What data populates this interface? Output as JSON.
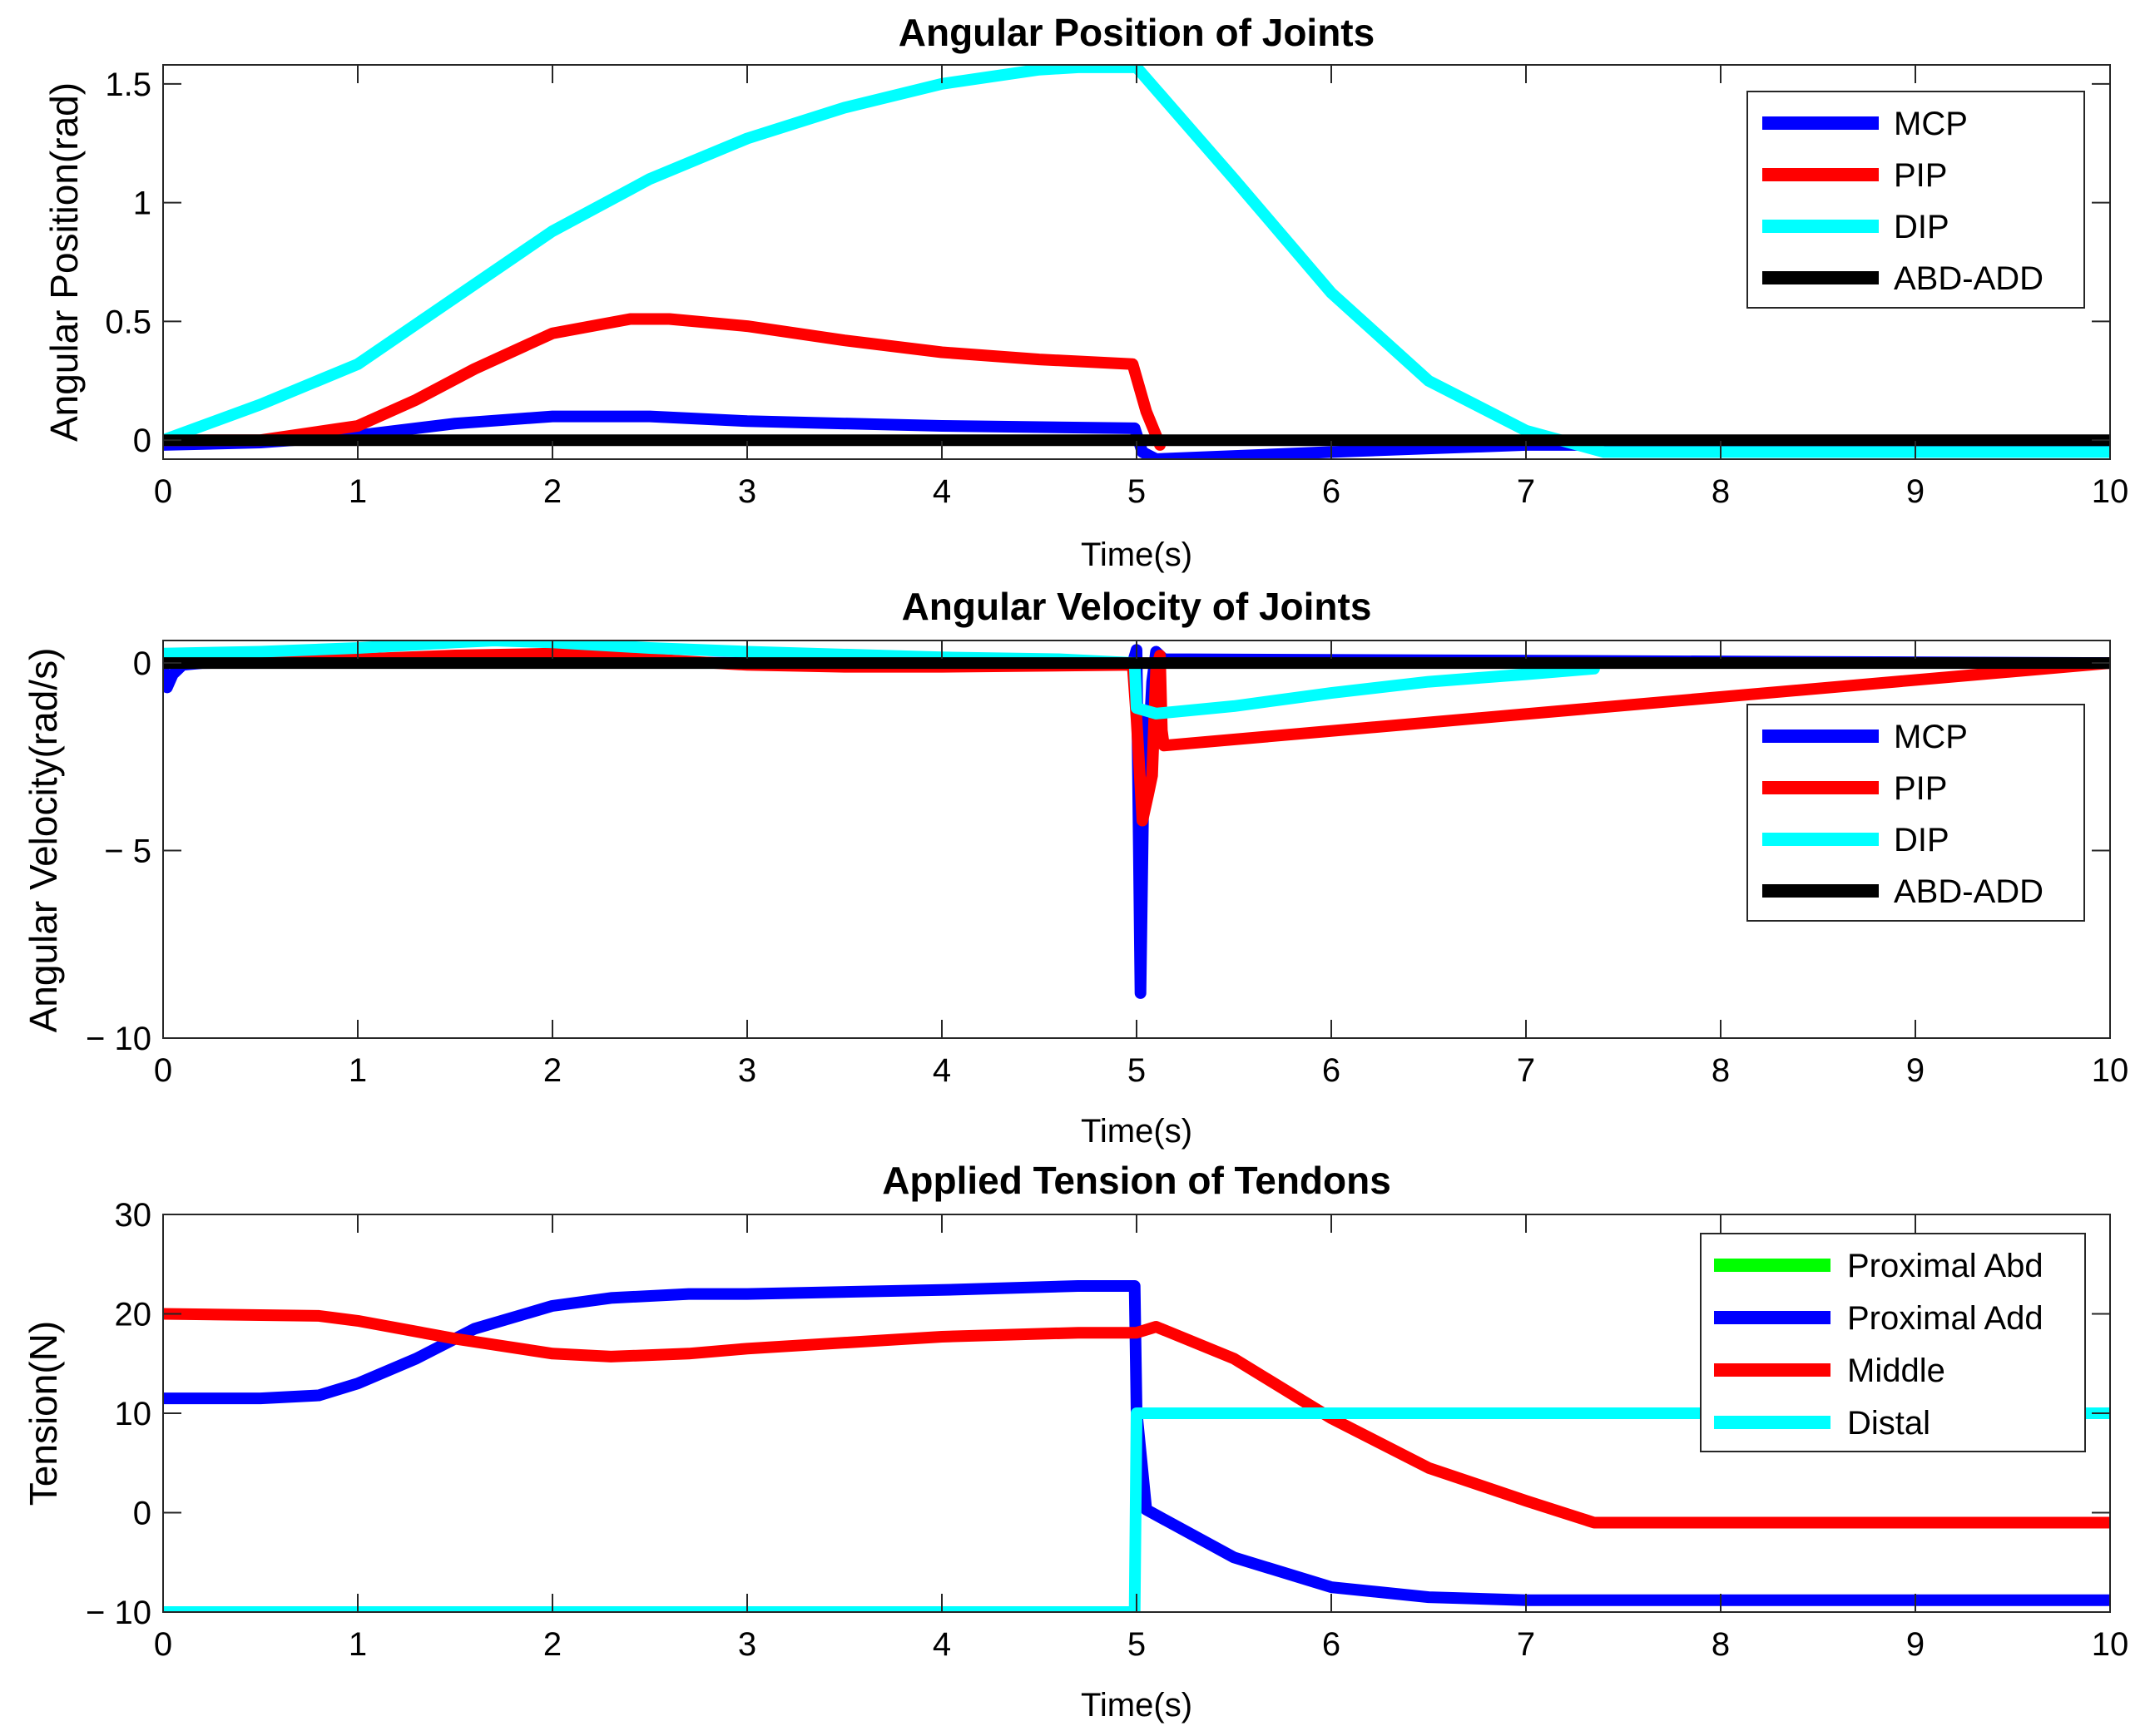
{
  "chart_data": [
    {
      "type": "line",
      "title": "Angular Position of Joints",
      "xlabel": "Time(s)",
      "ylabel": "Angular Position(rad)",
      "xlim": [
        0,
        10
      ],
      "ylim": [
        -0.08,
        1.58
      ],
      "xticks": [
        0,
        1,
        2,
        3,
        4,
        5,
        6,
        7,
        8,
        9,
        10
      ],
      "xtick_labels": [
        "0",
        "1",
        "2",
        "3",
        "4",
        "5",
        "6",
        "7",
        "8",
        "9",
        "10"
      ],
      "yticks": [
        0,
        0.5,
        1,
        1.5
      ],
      "ytick_labels": [
        "0",
        "0.5",
        "1",
        "1.5"
      ],
      "legend_position": "top-right",
      "series": [
        {
          "name": "MCP",
          "color": "#0000ff",
          "x": [
            0,
            0.5,
            1,
            1.5,
            2,
            2.5,
            3,
            4,
            4.99,
            5.03,
            5.1,
            6,
            7,
            10
          ],
          "y": [
            -0.02,
            -0.01,
            0.02,
            0.07,
            0.1,
            0.1,
            0.08,
            0.06,
            0.05,
            -0.05,
            -0.08,
            -0.05,
            -0.02,
            -0.02
          ]
        },
        {
          "name": "PIP",
          "color": "#ff0000",
          "x": [
            0,
            0.5,
            1,
            1.3,
            1.6,
            2,
            2.4,
            2.6,
            3,
            3.5,
            4,
            4.5,
            4.98,
            5.05,
            5.12
          ],
          "y": [
            0,
            0,
            0.06,
            0.17,
            0.3,
            0.45,
            0.51,
            0.51,
            0.48,
            0.42,
            0.37,
            0.34,
            0.32,
            0.12,
            -0.02
          ]
        },
        {
          "name": "DIP",
          "color": "#00ffff",
          "x": [
            0,
            0.5,
            1,
            1.5,
            2,
            2.5,
            3,
            3.5,
            4,
            4.5,
            4.7,
            5,
            5.5,
            6,
            6.5,
            7,
            7.4,
            10
          ],
          "y": [
            0,
            0.15,
            0.32,
            0.6,
            0.88,
            1.1,
            1.27,
            1.4,
            1.5,
            1.56,
            1.57,
            1.57,
            1.1,
            0.62,
            0.25,
            0.04,
            -0.05,
            -0.05
          ]
        },
        {
          "name": "ABD-ADD",
          "color": "#000000",
          "x": [
            0,
            10
          ],
          "y": [
            0,
            0
          ]
        }
      ]
    },
    {
      "type": "line",
      "title": "Angular Velocity of Joints",
      "xlabel": "Time(s)",
      "ylabel": "Angular Velocity(rad/s)",
      "xlim": [
        0,
        10
      ],
      "ylim": [
        -10,
        0.6
      ],
      "xticks": [
        0,
        1,
        2,
        3,
        4,
        5,
        6,
        7,
        8,
        9,
        10
      ],
      "xtick_labels": [
        "0",
        "1",
        "2",
        "3",
        "4",
        "5",
        "6",
        "7",
        "8",
        "9",
        "10"
      ],
      "yticks": [
        -10,
        -5,
        0
      ],
      "ytick_labels": [
        "− 10",
        "− 5",
        "0"
      ],
      "legend_position": "middle-right",
      "series": [
        {
          "name": "MCP",
          "color": "#0000ff",
          "x": [
            0,
            0.02,
            0.05,
            0.1,
            0.2,
            1,
            2,
            3,
            4,
            4.98,
            5.0,
            5.02,
            5.04,
            5.06,
            5.08,
            5.1,
            5.14,
            10
          ],
          "y": [
            -0.1,
            -0.65,
            -0.3,
            -0.05,
            0,
            0.05,
            0.05,
            0,
            0,
            0,
            0.35,
            -8.8,
            -1.5,
            -2.5,
            -0.5,
            0.3,
            0.1,
            0
          ]
        },
        {
          "name": "PIP",
          "color": "#ff0000",
          "x": [
            0,
            1,
            1.5,
            2,
            2.5,
            3,
            3.5,
            4,
            4.98,
            5.0,
            5.03,
            5.06,
            5.08,
            5.1,
            5.12,
            5.13,
            5.14,
            10
          ],
          "y": [
            0,
            0.1,
            0.2,
            0.25,
            0.1,
            -0.05,
            -0.1,
            -0.1,
            -0.05,
            -1.5,
            -4.2,
            -3.5,
            -3,
            -0.2,
            0.2,
            -1.8,
            -2.2,
            0
          ]
        },
        {
          "name": "DIP",
          "color": "#00ffff",
          "x": [
            0,
            0.5,
            1,
            1.5,
            1.7,
            2,
            2.5,
            3,
            4,
            4.6,
            4.99,
            5.0,
            5.1,
            5.5,
            6,
            6.5,
            7,
            7.35
          ],
          "y": [
            0.25,
            0.3,
            0.4,
            0.55,
            0.6,
            0.55,
            0.4,
            0.3,
            0.15,
            0.1,
            0,
            -1.2,
            -1.35,
            -1.15,
            -0.8,
            -0.5,
            -0.3,
            -0.15
          ]
        },
        {
          "name": "ABD-ADD",
          "color": "#000000",
          "x": [
            0,
            10
          ],
          "y": [
            0,
            0
          ]
        }
      ]
    },
    {
      "type": "line",
      "title": "Applied Tension of Tendons",
      "xlabel": "Time(s)",
      "ylabel": "Tension(N)",
      "xlim": [
        0,
        10
      ],
      "ylim": [
        -10,
        30
      ],
      "xticks": [
        0,
        1,
        2,
        3,
        4,
        5,
        6,
        7,
        8,
        9,
        10
      ],
      "xtick_labels": [
        "0",
        "1",
        "2",
        "3",
        "4",
        "5",
        "6",
        "7",
        "8",
        "9",
        "10"
      ],
      "yticks": [
        -10,
        0,
        10,
        20,
        30
      ],
      "ytick_labels": [
        "− 10",
        "0",
        "10",
        "20",
        "30"
      ],
      "legend_position": "top-right",
      "series": [
        {
          "name": "Proximal Abd",
          "color": "#00ff00",
          "x": [],
          "y": []
        },
        {
          "name": "Proximal Add",
          "color": "#0000ff",
          "x": [
            0,
            0.5,
            0.8,
            1,
            1.3,
            1.6,
            2,
            2.3,
            2.7,
            3,
            4,
            4.7,
            4.99,
            5.0,
            5.05,
            5.5,
            6,
            6.5,
            7,
            10
          ],
          "y": [
            11.5,
            11.5,
            11.8,
            13,
            15.5,
            18.5,
            20.8,
            21.6,
            22,
            22,
            22.4,
            22.8,
            22.8,
            10.2,
            0.3,
            -4.5,
            -7.5,
            -8.5,
            -8.8,
            -8.8
          ]
        },
        {
          "name": "Middle",
          "color": "#ff0000",
          "x": [
            0,
            0.8,
            1,
            1.5,
            2,
            2.3,
            2.7,
            3,
            4,
            4.7,
            5.0,
            5.1,
            5.5,
            6,
            6.5,
            7,
            7.35,
            10
          ],
          "y": [
            20,
            19.8,
            19.3,
            17.5,
            16,
            15.7,
            16,
            16.5,
            17.7,
            18.1,
            18.1,
            18.7,
            15.5,
            9.5,
            4.5,
            1.2,
            -1,
            -1
          ]
        },
        {
          "name": "Distal",
          "color": "#00ffff",
          "x": [
            0,
            4.99,
            5.0,
            10
          ],
          "y": [
            -10,
            -10,
            10,
            10
          ]
        }
      ]
    }
  ]
}
